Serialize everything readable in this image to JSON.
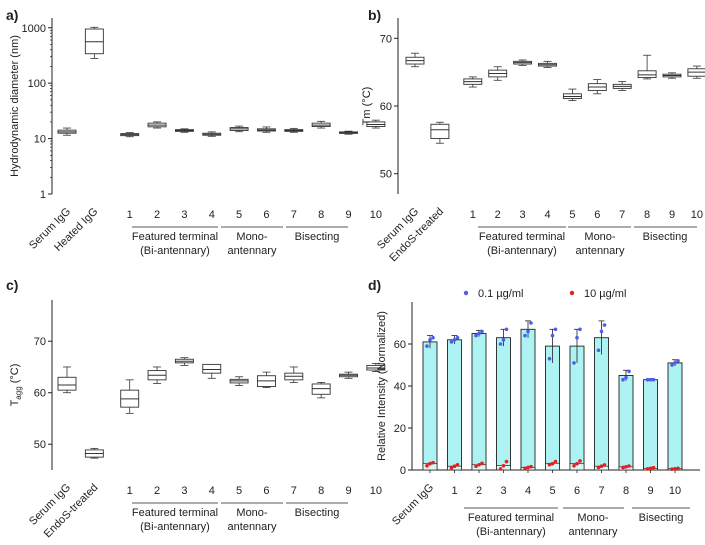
{
  "panels": {
    "a": {
      "label": "a)"
    },
    "b": {
      "label": "b)"
    },
    "c": {
      "label": "c)"
    },
    "d": {
      "label": "d)"
    }
  },
  "groups": {
    "featured": {
      "line1": "Featured terminal",
      "line2": "(Bi-antennary)"
    },
    "mono": {
      "line1": "Mono-",
      "line2": "antennary"
    },
    "bisecting": {
      "line1": "Bisecting"
    }
  },
  "chart_data": [
    {
      "panel": "a",
      "type": "box",
      "ylabel": "Hydrodynamic diameter (nm)",
      "yscale": "log",
      "ylim": [
        1,
        1500
      ],
      "yticks": [
        1,
        10,
        100,
        1000
      ],
      "categories": [
        "Serum IgG",
        "Heated IgG",
        "1",
        "2",
        "3",
        "4",
        "5",
        "6",
        "7",
        "8",
        "9",
        "10"
      ],
      "boxes": [
        {
          "min": 11.5,
          "q1": 12.5,
          "median": 13.2,
          "q3": 14.2,
          "max": 15.5
        },
        {
          "min": 280,
          "q1": 340,
          "median": 560,
          "q3": 950,
          "max": 1020
        },
        {
          "min": 10.8,
          "q1": 11.3,
          "median": 11.8,
          "q3": 12.3,
          "max": 12.8
        },
        {
          "min": 15.5,
          "q1": 16.3,
          "median": 17.5,
          "q3": 19,
          "max": 20
        },
        {
          "min": 13,
          "q1": 13.5,
          "median": 14,
          "q3": 14.5,
          "max": 15
        },
        {
          "min": 11,
          "q1": 11.5,
          "median": 12,
          "q3": 12.5,
          "max": 13.2
        },
        {
          "min": 13.3,
          "q1": 14,
          "median": 15,
          "q3": 15.8,
          "max": 16.8
        },
        {
          "min": 13,
          "q1": 13.7,
          "median": 14.3,
          "q3": 15,
          "max": 16.2
        },
        {
          "min": 13,
          "q1": 13.5,
          "median": 14,
          "q3": 14.5,
          "max": 15.3
        },
        {
          "min": 15.5,
          "q1": 16.5,
          "median": 17.5,
          "q3": 19,
          "max": 20.5
        },
        {
          "min": 12,
          "q1": 12.4,
          "median": 12.8,
          "q3": 13.2,
          "max": 13.6
        },
        {
          "min": 15.5,
          "q1": 16.5,
          "median": 18,
          "q3": 20,
          "max": 21.5
        }
      ]
    },
    {
      "panel": "b",
      "type": "box",
      "ylabel": "Tm (°C)",
      "ylim": [
        47,
        73
      ],
      "yticks": [
        50,
        60,
        70
      ],
      "categories": [
        "Serum IgG",
        "EndoS-treated",
        "1",
        "2",
        "3",
        "4",
        "5",
        "6",
        "7",
        "8",
        "9",
        "10"
      ],
      "boxes": [
        {
          "min": 65.8,
          "q1": 66.2,
          "median": 66.7,
          "q3": 67.2,
          "max": 67.8
        },
        {
          "min": 54.5,
          "q1": 55.2,
          "median": 56.5,
          "q3": 57.3,
          "max": 57.6
        },
        {
          "min": 62.8,
          "q1": 63.2,
          "median": 63.6,
          "q3": 64,
          "max": 64.3
        },
        {
          "min": 63.8,
          "q1": 64.3,
          "median": 64.8,
          "q3": 65.3,
          "max": 65.8
        },
        {
          "min": 66,
          "q1": 66.2,
          "median": 66.4,
          "q3": 66.6,
          "max": 66.8
        },
        {
          "min": 65.7,
          "q1": 65.9,
          "median": 66.1,
          "q3": 66.3,
          "max": 66.6
        },
        {
          "min": 60.8,
          "q1": 61.1,
          "median": 61.4,
          "q3": 61.8,
          "max": 62.5
        },
        {
          "min": 61.8,
          "q1": 62.3,
          "median": 62.8,
          "q3": 63.3,
          "max": 63.9
        },
        {
          "min": 62.3,
          "q1": 62.6,
          "median": 62.9,
          "q3": 63.2,
          "max": 63.6
        },
        {
          "min": 64,
          "q1": 64.2,
          "median": 64.6,
          "q3": 65.2,
          "max": 67.5
        },
        {
          "min": 64.1,
          "q1": 64.3,
          "median": 64.5,
          "q3": 64.7,
          "max": 64.9
        },
        {
          "min": 64.1,
          "q1": 64.4,
          "median": 65,
          "q3": 65.5,
          "max": 65.9
        }
      ]
    },
    {
      "panel": "c",
      "type": "box",
      "ylabel": "Tagg (°C)",
      "ylim": [
        45,
        78
      ],
      "yticks": [
        50,
        60,
        70
      ],
      "categories": [
        "Serum IgG",
        "EndoS-treated",
        "1",
        "2",
        "3",
        "4",
        "5",
        "6",
        "7",
        "8",
        "9",
        "10"
      ],
      "boxes": [
        {
          "min": 60,
          "q1": 60.5,
          "median": 61.5,
          "q3": 63,
          "max": 65
        },
        {
          "min": 47.3,
          "q1": 47.5,
          "median": 48.2,
          "q3": 48.9,
          "max": 49.2
        },
        {
          "min": 56,
          "q1": 57.2,
          "median": 58.8,
          "q3": 60.5,
          "max": 62.5
        },
        {
          "min": 61.8,
          "q1": 62.5,
          "median": 63.4,
          "q3": 64.3,
          "max": 65
        },
        {
          "min": 65.3,
          "q1": 65.8,
          "median": 66.1,
          "q3": 66.5,
          "max": 66.8
        },
        {
          "min": 62.8,
          "q1": 63.8,
          "median": 64.5,
          "q3": 65.5,
          "max": 65.5
        },
        {
          "min": 61.4,
          "q1": 61.9,
          "median": 62.3,
          "q3": 62.6,
          "max": 63.1
        },
        {
          "min": 61,
          "q1": 61.2,
          "median": 62.3,
          "q3": 63.3,
          "max": 64
        },
        {
          "min": 62,
          "q1": 62.5,
          "median": 63.2,
          "q3": 63.8,
          "max": 65
        },
        {
          "min": 59,
          "q1": 59.7,
          "median": 60.8,
          "q3": 61.7,
          "max": 62
        },
        {
          "min": 62.8,
          "q1": 63.1,
          "median": 63.4,
          "q3": 63.6,
          "max": 64
        },
        {
          "min": 64.1,
          "q1": 64.4,
          "median": 64.8,
          "q3": 65.3,
          "max": 65.7
        }
      ]
    },
    {
      "panel": "d",
      "type": "bar",
      "ylabel": "Relative Intensity (Normalized)",
      "ylim": [
        0,
        80
      ],
      "yticks": [
        0,
        20,
        40,
        60
      ],
      "categories": [
        "Serum IgG",
        "1",
        "2",
        "3",
        "4",
        "5",
        "6",
        "7",
        "8",
        "9",
        "10"
      ],
      "series": [
        {
          "name": "0.1 µg/ml",
          "color": "#4f5de8",
          "bar_color": "#aef3f3",
          "values": [
            61,
            62,
            65,
            63,
            67,
            59,
            59,
            63,
            45,
            43,
            51
          ],
          "errors": [
            3,
            2,
            1.5,
            4,
            4,
            8,
            8,
            8,
            2.5,
            0.5,
            1.5
          ],
          "points": [
            [
              59,
              62,
              63
            ],
            [
              61,
              62,
              63
            ],
            [
              64,
              65,
              66
            ],
            [
              60,
              62,
              67
            ],
            [
              64,
              66,
              70
            ],
            [
              53,
              64,
              67
            ],
            [
              51,
              63,
              67
            ],
            [
              57,
              66,
              69
            ],
            [
              43,
              44,
              47
            ],
            [
              43,
              43,
              43
            ],
            [
              50,
              51,
              52
            ]
          ]
        },
        {
          "name": "10 µg/ml",
          "color": "#e42020",
          "bar_color": "#d8f8f8",
          "values": [
            3,
            1.8,
            2.5,
            2.2,
            1.2,
            3.2,
            3,
            1.8,
            1.5,
            0.8,
            0.6
          ],
          "errors": [
            1,
            0.8,
            1,
            2,
            0.6,
            1,
            1.5,
            0.8,
            0.5,
            0.4,
            0.3
          ],
          "points": [
            [
              2,
              3,
              3.5
            ],
            [
              1,
              1.8,
              2.5
            ],
            [
              1.8,
              2.5,
              3.2
            ],
            [
              0.5,
              2,
              4
            ],
            [
              0.8,
              1.2,
              1.6
            ],
            [
              2.5,
              3,
              4
            ],
            [
              2,
              3,
              4.3
            ],
            [
              1.2,
              1.8,
              2.4
            ],
            [
              1.2,
              1.5,
              1.9
            ],
            [
              0.5,
              0.8,
              1.1
            ],
            [
              0.4,
              0.6,
              0.8
            ]
          ]
        }
      ]
    }
  ]
}
